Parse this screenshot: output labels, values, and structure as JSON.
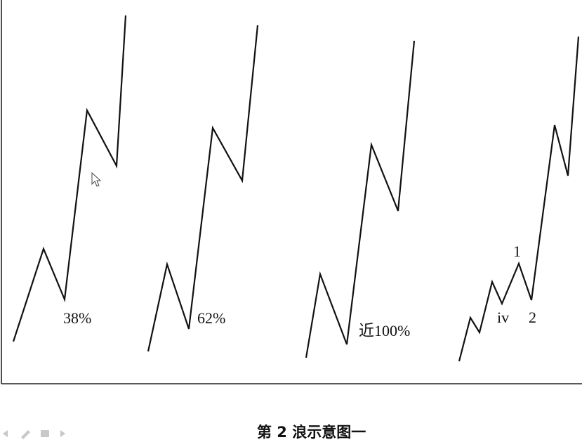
{
  "diagram": {
    "caption": "第 2 浪示意图一",
    "panels": [
      {
        "label": "38%"
      },
      {
        "label": "62%"
      },
      {
        "label": "近100%"
      },
      {
        "labels": {
          "one": "1",
          "iv": "iv",
          "two": "2"
        }
      }
    ]
  },
  "icons": [
    "cursor-icon",
    "prev-slide-icon",
    "pen-icon",
    "menu-icon",
    "next-slide-icon"
  ]
}
